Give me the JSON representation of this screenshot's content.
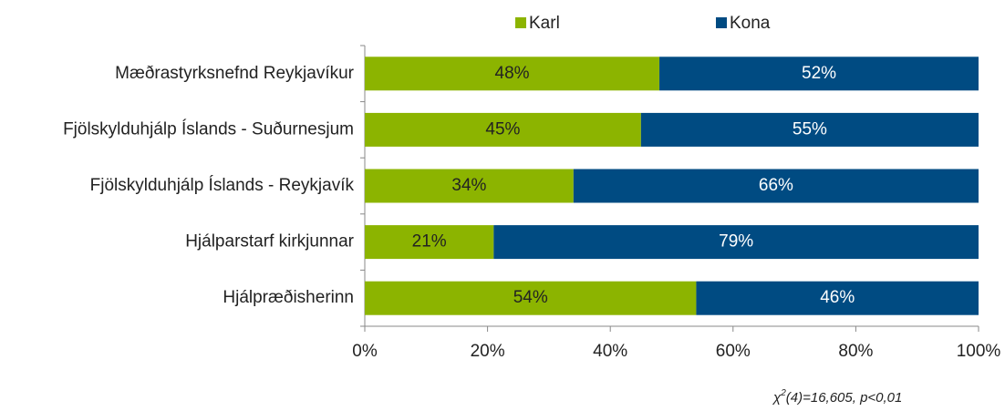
{
  "chart_data": {
    "type": "stacked_bar_horizontal",
    "categories": [
      "Mæðrastyrksnefnd Reykjavíkur",
      "Fjölskylduhjálp Íslands - Suðurnesjum",
      "Fjölskylduhjálp Íslands - Reykjavík",
      "Hjálparstarf kirkjunnar",
      "Hjálpræðisherinn"
    ],
    "series": [
      {
        "name": "Karl",
        "color": "#8cb400",
        "values": [
          48,
          45,
          34,
          21,
          54
        ],
        "value_labels": [
          "48%",
          "45%",
          "34%",
          "21%",
          "54%"
        ]
      },
      {
        "name": "Kona",
        "color": "#004b82",
        "values": [
          52,
          55,
          66,
          79,
          46
        ],
        "value_labels": [
          "52%",
          "55%",
          "66%",
          "79%",
          "46%"
        ]
      }
    ],
    "xlim": [
      0,
      100
    ],
    "xticks": [
      {
        "value": 0,
        "label": "0%"
      },
      {
        "value": 20,
        "label": "20%"
      },
      {
        "value": 40,
        "label": "40%"
      },
      {
        "value": 60,
        "label": "60%"
      },
      {
        "value": 80,
        "label": "80%"
      },
      {
        "value": 100,
        "label": "100%"
      }
    ],
    "legend": "top",
    "annotation": {
      "symbol": "χ",
      "superscript": "2",
      "text": "(4)=16,605,  p<0,01"
    }
  }
}
